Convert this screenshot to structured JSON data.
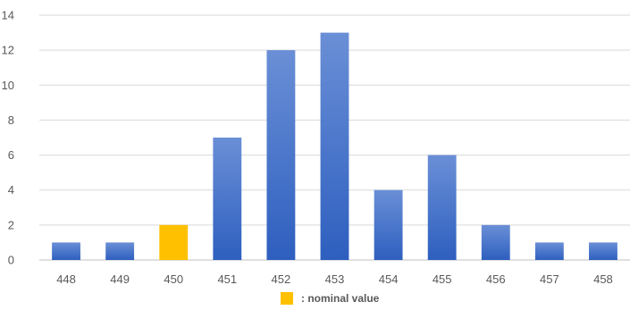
{
  "chart_data": {
    "type": "bar",
    "categories": [
      "448",
      "449",
      "450",
      "451",
      "452",
      "453",
      "454",
      "455",
      "456",
      "457",
      "458"
    ],
    "values": [
      1,
      1,
      2,
      7,
      12,
      13,
      4,
      6,
      2,
      1,
      1
    ],
    "highlight_category": "450",
    "title": "",
    "xlabel": "",
    "ylabel": "",
    "ylim": [
      0,
      14
    ],
    "yticks": [
      0,
      2,
      4,
      6,
      8,
      10,
      12,
      14
    ],
    "grid": true,
    "legend_position": "bottom-center",
    "legend": [
      {
        "label": ": nominal value",
        "color": "#ffc000"
      }
    ],
    "colors": {
      "bar": "#4472c4",
      "bar_gradient_top": "#6a8fd6",
      "bar_gradient_bottom": "#2e5fbf",
      "highlight": "#ffc000"
    }
  }
}
